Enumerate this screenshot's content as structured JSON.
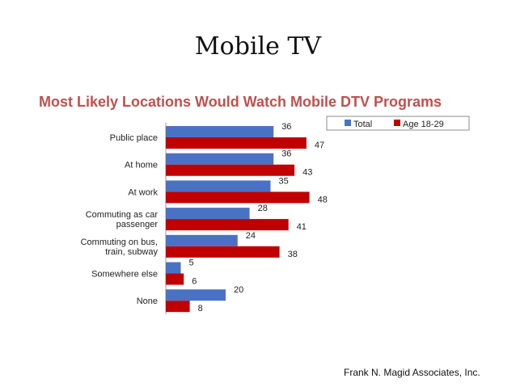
{
  "slide": {
    "title": "Mobile TV",
    "credit": "Frank N. Magid Associates, Inc."
  },
  "colors": {
    "total": "#4a72c4",
    "age": "#c00000",
    "title": "#c0504d"
  },
  "chart_data": {
    "type": "bar",
    "orientation": "horizontal",
    "title": "Most Likely Locations Would Watch Mobile DTV Programs",
    "xlabel": "",
    "ylabel": "",
    "xlim": [
      0,
      50
    ],
    "grid": false,
    "legend": "top-right",
    "categories": [
      [
        "Public place"
      ],
      [
        "At home"
      ],
      [
        "At work"
      ],
      [
        "Commuting as car",
        "passenger"
      ],
      [
        "Commuting on bus,",
        "train, subway"
      ],
      [
        "Somewhere else"
      ],
      [
        "None"
      ]
    ],
    "series": [
      {
        "name": "Total",
        "values": [
          36,
          36,
          35,
          28,
          24,
          5,
          20
        ]
      },
      {
        "name": "Age 18-29",
        "values": [
          47,
          43,
          48,
          41,
          38,
          6,
          8
        ]
      }
    ]
  }
}
